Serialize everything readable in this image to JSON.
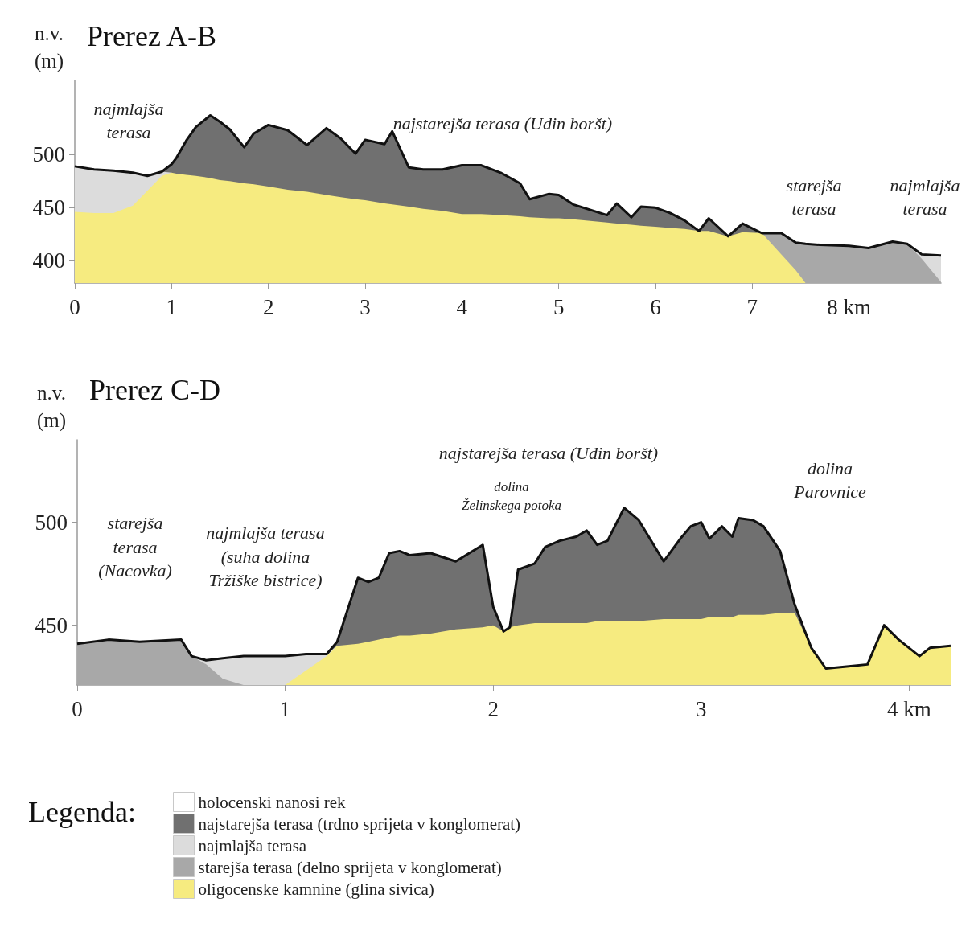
{
  "chart_data": [
    {
      "type": "area",
      "title": "Prerez A-B",
      "ylabel": "n.v.\n(m)",
      "grid": false,
      "legend": false,
      "marker": "none",
      "xlim": [
        0,
        8.95
      ],
      "ylim": [
        379,
        570
      ],
      "xticks": [
        0,
        1,
        2,
        3,
        4,
        5,
        6,
        7,
        {
          "value": 8,
          "label": "8 km"
        }
      ],
      "yticks": [
        400,
        450,
        500
      ],
      "x": [
        0,
        0.2,
        0.4,
        0.6,
        0.75,
        0.9,
        1.0,
        1.05,
        1.15,
        1.25,
        1.4,
        1.5,
        1.6,
        1.75,
        1.85,
        2.0,
        2.2,
        2.4,
        2.6,
        2.75,
        2.9,
        3.0,
        3.2,
        3.28,
        3.45,
        3.6,
        3.8,
        4.0,
        4.2,
        4.4,
        4.6,
        4.7,
        4.9,
        5.0,
        5.15,
        5.5,
        5.6,
        5.75,
        5.85,
        6.0,
        6.15,
        6.3,
        6.45,
        6.55,
        6.75,
        6.9,
        7.1,
        7.3,
        7.45,
        7.55,
        7.7,
        8.0,
        8.2,
        8.45,
        8.6,
        8.75,
        8.95
      ],
      "series": [
        {
          "color": "#707070",
          "values": [
            489,
            486,
            485,
            483,
            480,
            484,
            491,
            497,
            513,
            526,
            537,
            531,
            524,
            507,
            520,
            528,
            523,
            509,
            525,
            515,
            501,
            514,
            510,
            522,
            488,
            486,
            486,
            490,
            490,
            483,
            473,
            458,
            463,
            462,
            453,
            443,
            454,
            441,
            451,
            450,
            445,
            438,
            428,
            440,
            423,
            435,
            426,
            426,
            417,
            416,
            415,
            414,
            412,
            418,
            416,
            406,
            405
          ]
        },
        {
          "color": "#dcdcdc",
          "values": [
            489,
            486,
            485,
            483,
            480,
            484,
            483,
            null,
            null,
            null,
            null,
            null,
            null,
            null,
            null,
            null,
            null,
            null,
            null,
            null,
            null,
            null,
            null,
            null,
            null,
            null,
            null,
            null,
            null,
            null,
            null,
            null,
            null,
            null,
            null,
            null,
            null,
            null,
            null,
            null,
            null,
            null,
            null,
            null,
            null,
            null,
            null,
            null,
            null,
            null,
            null,
            null,
            null,
            null,
            416,
            406,
            405
          ]
        },
        {
          "color": "#a8a8a8",
          "values": [
            null,
            null,
            null,
            null,
            null,
            null,
            null,
            null,
            null,
            null,
            null,
            null,
            null,
            null,
            null,
            null,
            null,
            null,
            null,
            null,
            null,
            null,
            null,
            null,
            null,
            null,
            null,
            null,
            null,
            null,
            null,
            null,
            null,
            null,
            null,
            null,
            null,
            null,
            null,
            null,
            null,
            null,
            null,
            null,
            null,
            null,
            426,
            426,
            417,
            416,
            415,
            414,
            412,
            418,
            416,
            402,
            380
          ]
        },
        {
          "color": "#f6eb80",
          "values": [
            446,
            445,
            445,
            452,
            466,
            480,
            483,
            482,
            481,
            480,
            478,
            476,
            475,
            473,
            472,
            470,
            467,
            465,
            462,
            460,
            458,
            457,
            454,
            453,
            451,
            449,
            447,
            444,
            444,
            443,
            442,
            441,
            440,
            440,
            439,
            436,
            435,
            434,
            433,
            432,
            431,
            430,
            428,
            428,
            423,
            427,
            426,
            406,
            391,
            379,
            null,
            null,
            null,
            null,
            null,
            null,
            null
          ]
        }
      ],
      "annotations": [
        "najmlajša\nterasa",
        "najstarejša terasa (Udin boršt)",
        "starejša\nterasa",
        "najmlajša\nterasa"
      ]
    },
    {
      "type": "area",
      "title": "Prerez C-D",
      "ylabel": "n.v.\n(m)",
      "grid": false,
      "legend": "bottom left",
      "legend_title": "Legenda:",
      "marker": "none",
      "xlim": [
        0,
        4.2
      ],
      "ylim": [
        421,
        540
      ],
      "xticks": [
        0,
        1,
        2,
        3,
        {
          "value": 4,
          "label": "4 km"
        }
      ],
      "yticks": [
        450,
        500
      ],
      "x": [
        0,
        0.15,
        0.3,
        0.5,
        0.55,
        0.62,
        0.7,
        0.8,
        0.9,
        1.0,
        1.1,
        1.2,
        1.25,
        1.35,
        1.4,
        1.45,
        1.5,
        1.55,
        1.6,
        1.7,
        1.82,
        1.95,
        2.0,
        2.05,
        2.08,
        2.12,
        2.2,
        2.25,
        2.32,
        2.4,
        2.45,
        2.5,
        2.55,
        2.63,
        2.7,
        2.82,
        2.9,
        2.95,
        3.0,
        3.04,
        3.1,
        3.15,
        3.18,
        3.25,
        3.3,
        3.38,
        3.45,
        3.53,
        3.6,
        3.7,
        3.8,
        3.88,
        3.95,
        4.05,
        4.1,
        4.2
      ],
      "series": [
        {
          "name": "holocenski nanosi rek",
          "color": "#ffffff",
          "values": [
            null,
            null,
            null,
            null,
            null,
            null,
            null,
            null,
            null,
            null,
            null,
            null,
            null,
            null,
            null,
            null,
            null,
            null,
            null,
            null,
            null,
            null,
            null,
            null,
            null,
            null,
            null,
            null,
            null,
            null,
            null,
            null,
            null,
            null,
            null,
            null,
            null,
            null,
            null,
            null,
            null,
            null,
            null,
            null,
            null,
            null,
            null,
            null,
            null,
            null,
            null,
            null,
            null,
            null,
            null,
            null
          ]
        },
        {
          "name": "najstarejša terasa (trdno sprijeta v konglomerat)",
          "color": "#707070",
          "values": [
            441,
            443,
            442,
            443,
            435,
            433,
            434,
            435,
            435,
            435,
            436,
            436,
            442,
            473,
            471,
            473,
            485,
            486,
            484,
            485,
            481,
            489,
            459,
            447,
            449,
            477,
            480,
            488,
            491,
            493,
            496,
            489,
            491,
            507,
            501,
            481,
            492,
            498,
            500,
            492,
            498,
            493,
            502,
            501,
            498,
            486,
            460,
            439,
            429,
            430,
            431,
            450,
            443,
            435,
            439,
            440
          ]
        },
        {
          "name": "najmlajša terasa",
          "color": "#dcdcdc",
          "values": [
            null,
            null,
            null,
            null,
            435,
            433,
            434,
            435,
            435,
            435,
            436,
            436,
            440,
            null,
            null,
            null,
            null,
            null,
            null,
            null,
            null,
            null,
            null,
            null,
            null,
            null,
            null,
            null,
            null,
            null,
            null,
            null,
            null,
            null,
            null,
            null,
            null,
            null,
            null,
            null,
            null,
            null,
            null,
            null,
            null,
            null,
            null,
            null,
            null,
            null,
            null,
            null,
            null,
            null,
            null,
            null
          ]
        },
        {
          "name": "starejša terasa (delno sprijeta v konglomerat)",
          "color": "#a8a8a8",
          "values": [
            441,
            443,
            442,
            443,
            435,
            431,
            424,
            421,
            null,
            null,
            null,
            null,
            null,
            null,
            null,
            null,
            null,
            null,
            null,
            null,
            null,
            null,
            null,
            null,
            null,
            null,
            null,
            null,
            null,
            null,
            null,
            null,
            null,
            null,
            null,
            null,
            null,
            null,
            null,
            null,
            null,
            null,
            null,
            null,
            null,
            null,
            null,
            null,
            null,
            null,
            null,
            null,
            null,
            null,
            null,
            null
          ]
        },
        {
          "name": "oligocenske kamnine (glina sivica)",
          "color": "#f6eb80",
          "values": [
            null,
            null,
            null,
            null,
            null,
            null,
            null,
            null,
            null,
            421,
            428,
            435,
            440,
            441,
            442,
            443,
            444,
            445,
            445,
            446,
            448,
            449,
            450,
            447,
            449,
            450,
            451,
            451,
            451,
            451,
            451,
            452,
            452,
            452,
            452,
            453,
            453,
            453,
            453,
            454,
            454,
            454,
            455,
            455,
            455,
            456,
            456,
            439,
            429,
            430,
            431,
            450,
            443,
            435,
            439,
            440
          ]
        }
      ],
      "annotations": [
        "starejša\nterasa\n(Nacovka)",
        "najmlajša terasa\n(suha dolina\nTržiške bistrice)",
        "najstarejša terasa (Udin boršt)",
        "dolina\nŽelinskega potoka",
        "dolina\nParovnice"
      ]
    }
  ]
}
